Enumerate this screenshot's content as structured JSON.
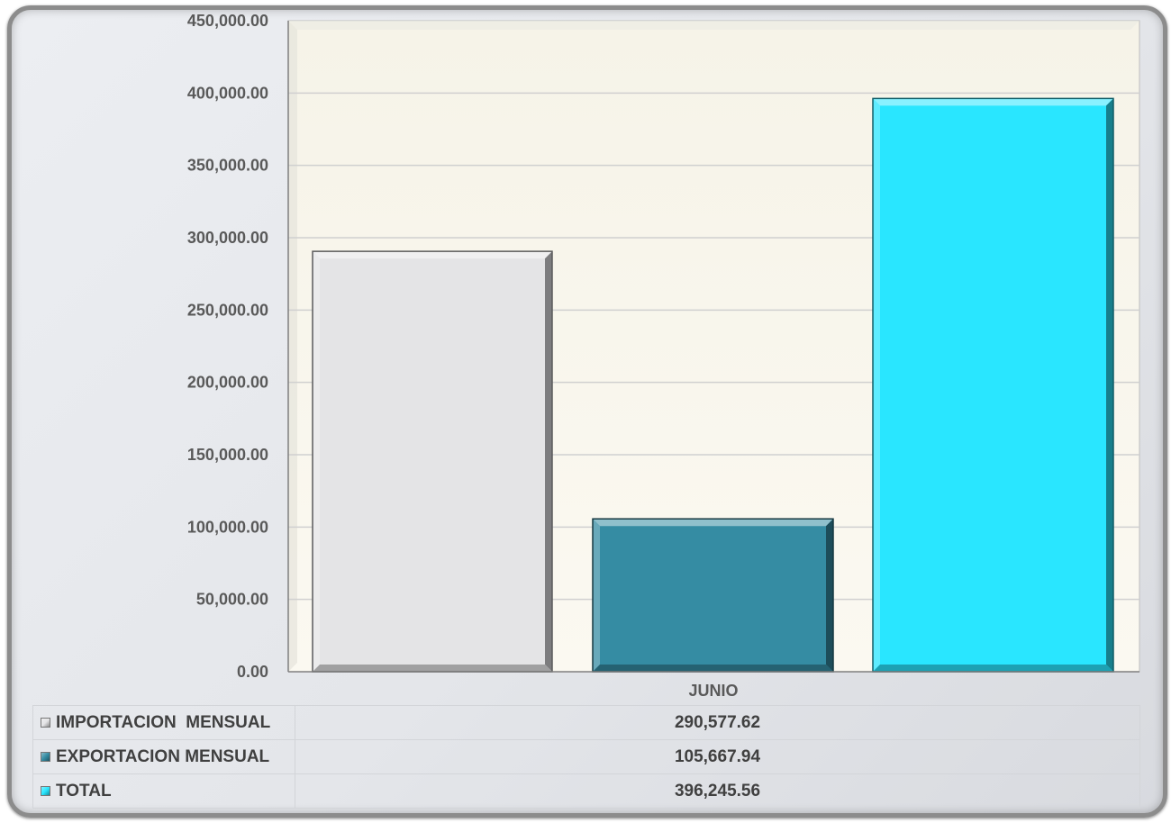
{
  "chart_data": {
    "type": "bar",
    "categories": [
      "JUNIO"
    ],
    "series": [
      {
        "name": "IMPORTACION  MENSUAL",
        "values": [
          290577.62
        ],
        "value_label": "290,577.62",
        "color": "#e4e4e6"
      },
      {
        "name": "EXPORTACION MENSUAL",
        "values": [
          105667.94
        ],
        "value_label": "105,667.94",
        "color": "#358ca3"
      },
      {
        "name": "TOTAL",
        "values": [
          396245.56
        ],
        "value_label": "396,245.56",
        "color": "#29e6ff"
      }
    ],
    "ylim": [
      0,
      450000
    ],
    "yticks": [
      0,
      50000,
      100000,
      150000,
      200000,
      250000,
      300000,
      350000,
      400000,
      450000
    ],
    "ytick_labels": [
      "0.00",
      "50,000.00",
      "100,000.00",
      "150,000.00",
      "200,000.00",
      "250,000.00",
      "300,000.00",
      "350,000.00",
      "400,000.00",
      "450,000.00"
    ],
    "grid": true,
    "legend": "data table below chart",
    "plot_background": "#faf7ee"
  }
}
